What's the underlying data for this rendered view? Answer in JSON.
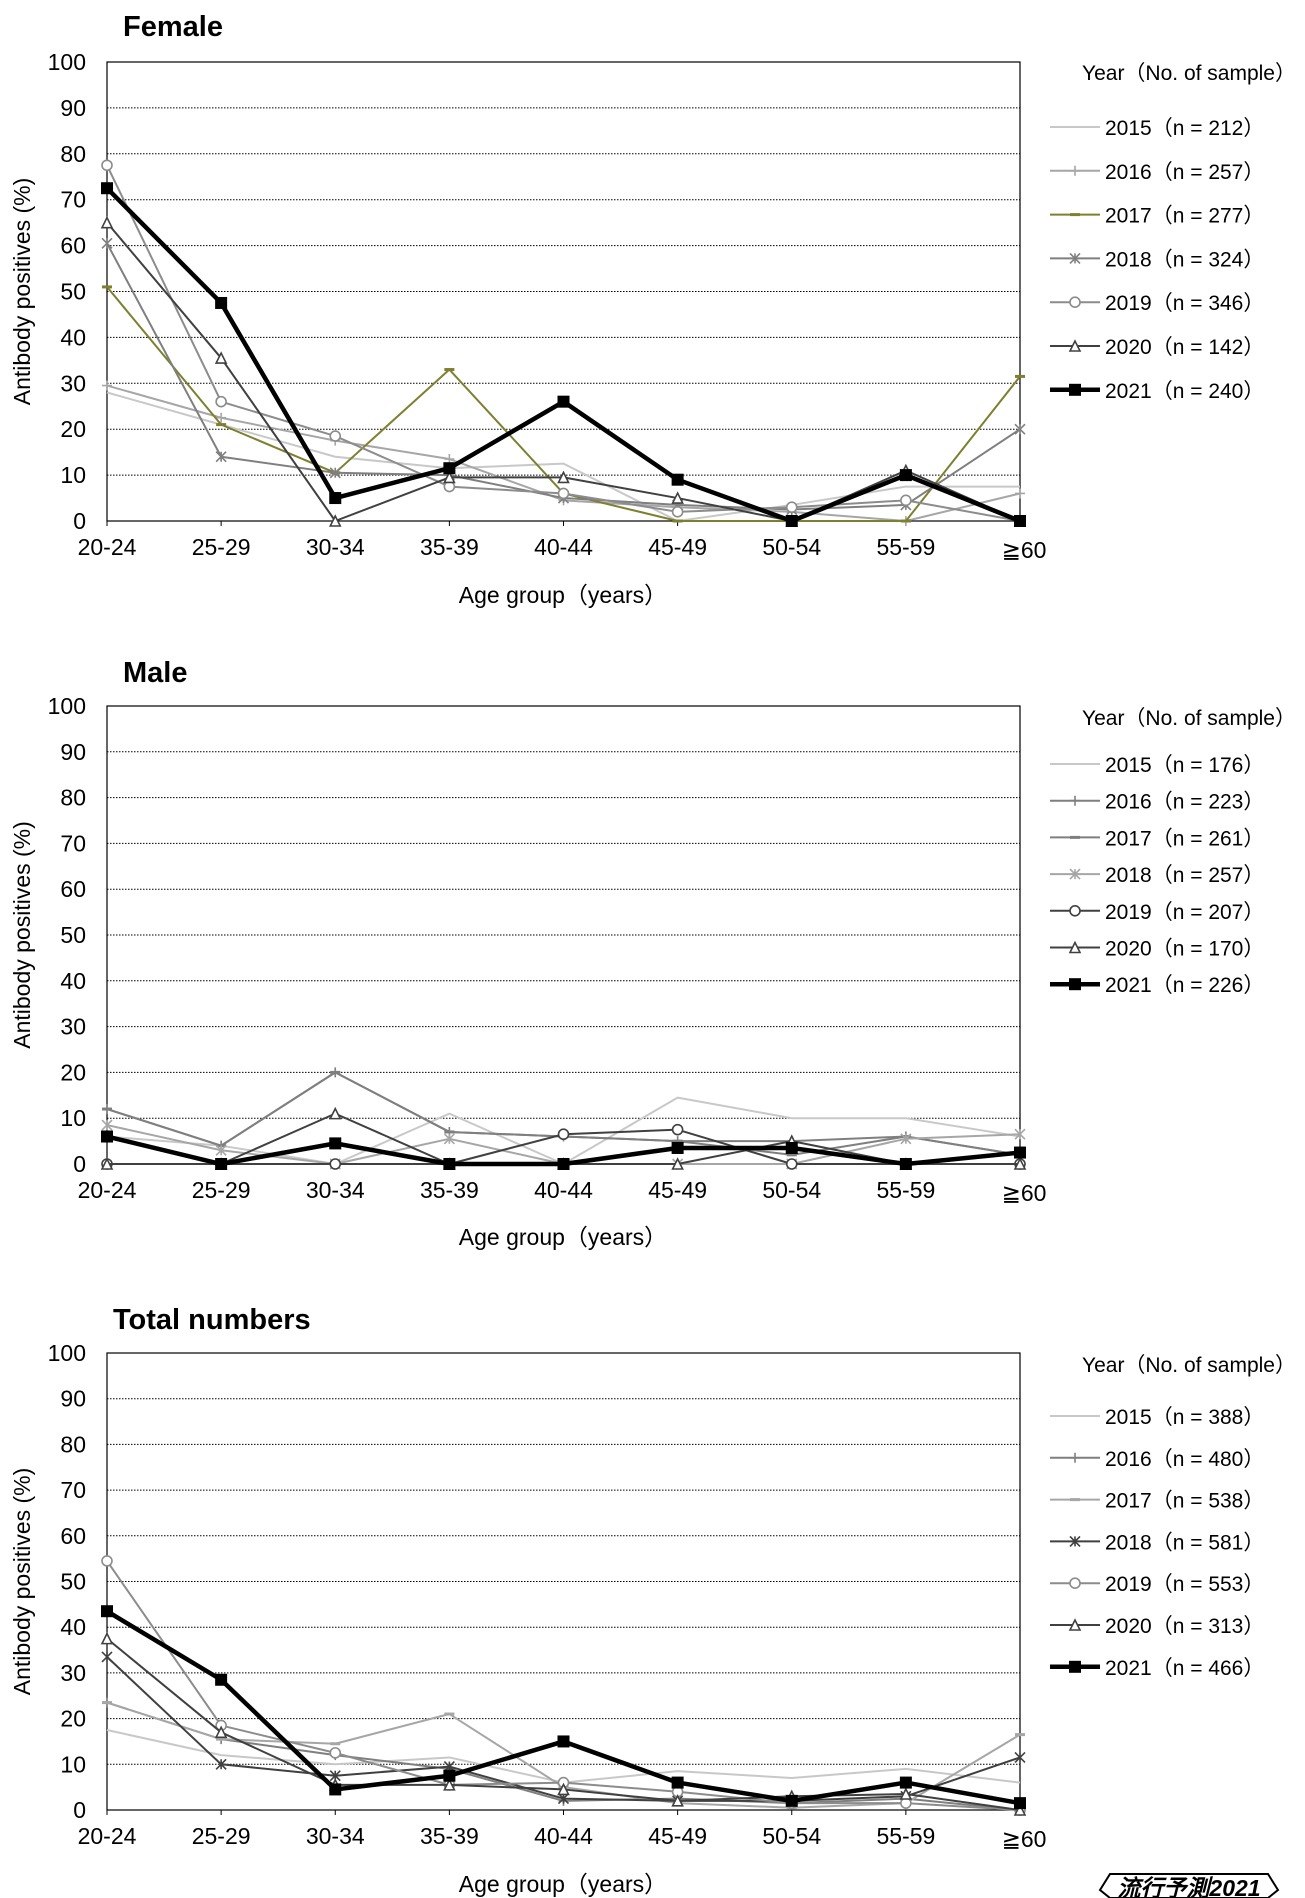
{
  "chart_data": [
    {
      "type": "line",
      "title": "Female",
      "ylabel": "Antibody positives (%)",
      "xlabel": "Age group（years）",
      "ylim": [
        0,
        100
      ],
      "yticks": [
        "0",
        "10",
        "20",
        "30",
        "40",
        "50",
        "60",
        "70",
        "80",
        "90",
        "100"
      ],
      "categories": [
        "20-24",
        "25-29",
        "30-34",
        "35-39",
        "40-44",
        "45-49",
        "50-54",
        "55-59",
        "≧60"
      ],
      "legend_title": "Year（No. of sample）",
      "grid": true,
      "series": [
        {
          "name": "2015（n = 212）",
          "color": "#c8c8c8",
          "marker": "none",
          "width": 2,
          "values": [
            28,
            21,
            14,
            11.5,
            12.5,
            0,
            3.5,
            7.5,
            7.5
          ]
        },
        {
          "name": "2016（n = 257）",
          "color": "#a6a6a6",
          "marker": "plus",
          "width": 2,
          "values": [
            29.5,
            22.5,
            17.5,
            13.5,
            4.5,
            3,
            2,
            0,
            6
          ]
        },
        {
          "name": "2017（n = 277）",
          "color": "#7f7f30",
          "marker": "dash",
          "width": 2,
          "values": [
            51,
            21,
            10.5,
            33,
            6,
            0,
            0,
            0,
            31.5
          ]
        },
        {
          "name": "2018（n = 324）",
          "color": "#7f7f7f",
          "marker": "star",
          "width": 2,
          "values": [
            60.5,
            14,
            10.5,
            10,
            5,
            3.5,
            2.5,
            3.5,
            20
          ]
        },
        {
          "name": "2019（n = 346）",
          "color": "#8c8c8c",
          "marker": "circle",
          "width": 2,
          "values": [
            77.5,
            26,
            18.5,
            7.5,
            6,
            2,
            3,
            4.5,
            0
          ]
        },
        {
          "name": "2020（n = 142）",
          "color": "#404040",
          "marker": "triangle",
          "width": 2,
          "values": [
            65,
            35.5,
            0,
            9.5,
            9.5,
            5,
            0,
            11,
            0
          ]
        },
        {
          "name": "2021（n = 240）",
          "color": "#000000",
          "marker": "square",
          "width": 4.5,
          "values": [
            72.5,
            47.5,
            5,
            11.5,
            26,
            9,
            0,
            10,
            0
          ]
        }
      ]
    },
    {
      "type": "line",
      "title": "Male",
      "ylabel": "Antibody positives (%)",
      "xlabel": "Age group（years）",
      "ylim": [
        0,
        100
      ],
      "yticks": [
        "0",
        "10",
        "20",
        "30",
        "40",
        "50",
        "60",
        "70",
        "80",
        "90",
        "100"
      ],
      "categories": [
        "20-24",
        "25-29",
        "30-34",
        "35-39",
        "40-44",
        "45-49",
        "50-54",
        "55-59",
        "≧60"
      ],
      "legend_title": "Year（No. of sample）",
      "grid": true,
      "series": [
        {
          "name": "2015（n = 176）",
          "color": "#c8c8c8",
          "marker": "none",
          "width": 2,
          "values": [
            6,
            4,
            0,
            11,
            0,
            14.5,
            10,
            10,
            6
          ]
        },
        {
          "name": "2016（n = 223）",
          "color": "#7f7f7f",
          "marker": "plus",
          "width": 2,
          "values": [
            12,
            4,
            20,
            7,
            6,
            5,
            5,
            6,
            2
          ]
        },
        {
          "name": "2017（n = 261）",
          "color": "#7f7f7f",
          "marker": "dash",
          "width": 2,
          "values": [
            12,
            4,
            20,
            7,
            6,
            5,
            2,
            6,
            2
          ]
        },
        {
          "name": "2018（n = 257）",
          "color": "#a6a6a6",
          "marker": "star",
          "width": 2,
          "values": [
            8.5,
            3,
            0,
            5.5,
            0,
            0,
            0,
            5.5,
            6.5
          ]
        },
        {
          "name": "2019（n = 207）",
          "color": "#404040",
          "marker": "circle",
          "width": 2,
          "values": [
            0,
            0,
            0,
            0,
            6.5,
            7.5,
            0,
            0,
            0
          ]
        },
        {
          "name": "2020（n = 170）",
          "color": "#404040",
          "marker": "triangle",
          "width": 2,
          "values": [
            0,
            0,
            11,
            0,
            0,
            0,
            5,
            0,
            0
          ]
        },
        {
          "name": "2021（n = 226）",
          "color": "#000000",
          "marker": "square",
          "width": 4.5,
          "values": [
            6,
            0,
            4.5,
            0,
            0,
            3.5,
            3.5,
            0,
            2.5
          ]
        }
      ]
    },
    {
      "type": "line",
      "title": "Total numbers",
      "ylabel": "Antibody positives (%)",
      "xlabel": "Age group（years）",
      "ylim": [
        0,
        100
      ],
      "yticks": [
        "0",
        "10",
        "20",
        "30",
        "40",
        "50",
        "60",
        "70",
        "80",
        "90",
        "100"
      ],
      "categories": [
        "20-24",
        "25-29",
        "30-34",
        "35-39",
        "40-44",
        "45-49",
        "50-54",
        "55-59",
        "≧60"
      ],
      "legend_title": "Year（No. of sample）",
      "grid": true,
      "series": [
        {
          "name": "2015（n = 388）",
          "color": "#c8c8c8",
          "marker": "none",
          "width": 2,
          "values": [
            17.5,
            12,
            10,
            11.5,
            6,
            8.5,
            7,
            9,
            6
          ]
        },
        {
          "name": "2016（n = 480）",
          "color": "#7f7f7f",
          "marker": "plus",
          "width": 2,
          "values": [
            23.5,
            15.5,
            12,
            9,
            2,
            2.5,
            1.5,
            2.5,
            0
          ]
        },
        {
          "name": "2017（n = 538）",
          "color": "#a6a6a6",
          "marker": "dash",
          "width": 2,
          "values": [
            23.5,
            15.5,
            14.5,
            21,
            5,
            1.5,
            0.5,
            1.5,
            16.5
          ]
        },
        {
          "name": "2018（n = 581）",
          "color": "#404040",
          "marker": "star",
          "width": 2,
          "values": [
            33.5,
            10,
            7.5,
            9.5,
            2.5,
            2,
            2,
            3,
            11.5
          ]
        },
        {
          "name": "2019（n = 553）",
          "color": "#8c8c8c",
          "marker": "circle",
          "width": 2,
          "values": [
            54.5,
            18.5,
            12.5,
            5.5,
            6,
            4,
            1.5,
            1.5,
            0
          ]
        },
        {
          "name": "2020（n = 313）",
          "color": "#404040",
          "marker": "triangle",
          "width": 2,
          "values": [
            37.5,
            17,
            5.5,
            5.5,
            4.5,
            2,
            3,
            3.5,
            0
          ]
        },
        {
          "name": "2021（n = 466）",
          "color": "#000000",
          "marker": "square",
          "width": 4.5,
          "values": [
            43.5,
            28.5,
            4.5,
            7.5,
            15,
            6,
            2,
            6,
            1.5
          ]
        }
      ]
    }
  ],
  "stamp": "流行予測2021"
}
